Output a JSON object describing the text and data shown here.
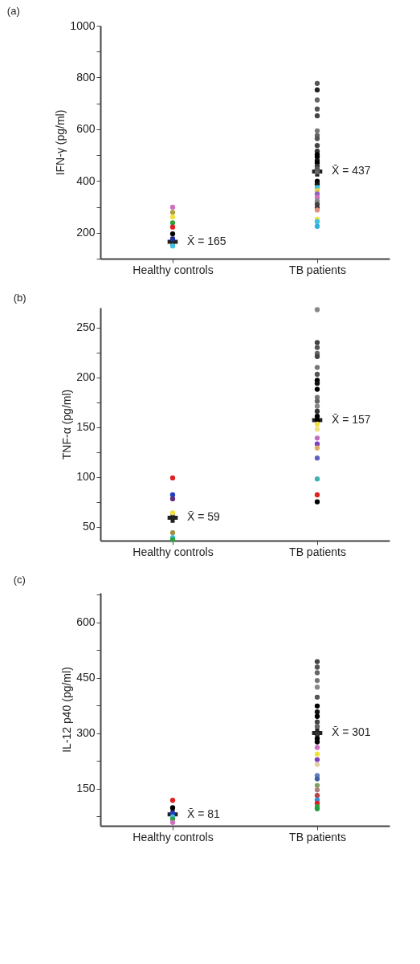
{
  "chart_data": [
    {
      "type": "scatter",
      "title": "(a)",
      "ylabel": "IFN-γ (pg/ml)",
      "categories": [
        "Healthy controls",
        "TB patients"
      ],
      "ylim": [
        100,
        1000
      ],
      "yticks": [
        {
          "value": 100,
          "label": null
        },
        200,
        {
          "value": 300,
          "label": null
        },
        400,
        {
          "value": 500,
          "label": null
        },
        600,
        {
          "value": 700,
          "label": null
        },
        800,
        {
          "value": 900,
          "label": null
        },
        1000
      ],
      "marker": "circle",
      "series": [
        {
          "x": [
            "Healthy controls",
            "Healthy controls",
            "Healthy controls",
            "Healthy controls",
            "Healthy controls",
            "Healthy controls",
            "Healthy controls",
            "Healthy controls"
          ],
          "values": [
            299,
            279,
            261,
            238,
            222,
            196,
            176,
            149
          ],
          "colors": [
            "#d070c0",
            "#b0a040",
            "#f0e040",
            "#30a040",
            "#e02020",
            "#000000",
            "#2030a0",
            "#40c0e0"
          ]
        },
        {
          "x": [
            "TB patients",
            "TB patients",
            "TB patients",
            "TB patients",
            "TB patients",
            "TB patients",
            "TB patients",
            "TB patients",
            "TB patients",
            "TB patients",
            "TB patients",
            "TB patients",
            "TB patients",
            "TB patients",
            "TB patients",
            "TB patients",
            "TB patients",
            "TB patients",
            "TB patients",
            "TB patients",
            "TB patients",
            "TB patients",
            "TB patients",
            "TB patients",
            "TB patients",
            "TB patients",
            "TB patients",
            "TB patients",
            "TB patients",
            "TB patients"
          ],
          "values": [
            777,
            752,
            713,
            678,
            652,
            594,
            576,
            564,
            537,
            515,
            502,
            493,
            479,
            470,
            457,
            448,
            435,
            399,
            388,
            375,
            363,
            350,
            337,
            323,
            310,
            296,
            288,
            252,
            243,
            225
          ],
          "colors": [
            "#555555",
            "#222222",
            "#666666",
            "#555555",
            "#444444",
            "#777777",
            "#666666",
            "#555555",
            "#444444",
            "#333333",
            "#000000",
            "#000000",
            "#111111",
            "#000000",
            "#333333",
            "#555555",
            "#666666",
            "#000000",
            "#111111",
            "#40c0e0",
            "#e0d040",
            "#9060c0",
            "#d070c0",
            "#888888",
            "#444444",
            "#333333",
            "#e09080",
            "#f0e040",
            "#40c0e0",
            "#30b0e0"
          ]
        },
        {
          "type": "scatter",
          "marker": "cross",
          "color": "#222222",
          "x": [
            "Healthy controls",
            "TB patients"
          ],
          "values": [
            165,
            437
          ],
          "value_labels": [
            "X̄ = 165",
            "X̄ = 437"
          ]
        }
      ]
    },
    {
      "type": "scatter",
      "title": "(b)",
      "ylabel": "TNF-α (pg/ml)",
      "categories": [
        "Healthy controls",
        "TB patients"
      ],
      "ylim": [
        36,
        270
      ],
      "yticks": [
        50,
        {
          "value": 75,
          "label": null
        },
        100,
        {
          "value": 125,
          "label": null
        },
        150,
        {
          "value": 175,
          "label": null
        },
        200,
        {
          "value": 225,
          "label": null
        },
        250
      ],
      "marker": "circle",
      "series": [
        {
          "x": [
            "Healthy controls",
            "Healthy controls",
            "Healthy controls",
            "Healthy controls",
            "Healthy controls",
            "Healthy controls",
            "Healthy controls"
          ],
          "values": [
            99,
            82,
            78,
            64,
            44,
            39,
            37
          ],
          "colors": [
            "#e02020",
            "#2040c0",
            "#603080",
            "#f0e040",
            "#a09040",
            "#40c0e0",
            "#30a040"
          ]
        },
        {
          "x": [
            "TB patients",
            "TB patients",
            "TB patients",
            "TB patients",
            "TB patients",
            "TB patients",
            "TB patients",
            "TB patients",
            "TB patients",
            "TB patients",
            "TB patients",
            "TB patients",
            "TB patients",
            "TB patients",
            "TB patients",
            "TB patients",
            "TB patients",
            "TB patients",
            "TB patients",
            "TB patients",
            "TB patients",
            "TB patients",
            "TB patients",
            "TB patients",
            "TB patients"
          ],
          "values": [
            268,
            235,
            230,
            224,
            221,
            210,
            203,
            197,
            194,
            188,
            180,
            176,
            171,
            166,
            161,
            157,
            153,
            148,
            139,
            133,
            129,
            119,
            98,
            82,
            75
          ],
          "colors": [
            "#888888",
            "#444444",
            "#555555",
            "#666666",
            "#444444",
            "#777777",
            "#555555",
            "#000000",
            "#111111",
            "#000000",
            "#777777",
            "#666666",
            "#888888",
            "#333333",
            "#000000",
            "#000000",
            "#f0e040",
            "#f0e080",
            "#c070c0",
            "#8040c0",
            "#e0b060",
            "#6060c0",
            "#40b0b0",
            "#e02020",
            "#000000"
          ]
        },
        {
          "type": "scatter",
          "marker": "cross",
          "color": "#222222",
          "x": [
            "Healthy controls",
            "TB patients"
          ],
          "values": [
            59,
            157
          ],
          "value_labels": [
            "X̄ = 59",
            "X̄ = 157"
          ]
        }
      ]
    },
    {
      "type": "scatter",
      "title": "(c)",
      "ylabel": "IL-12 p40 (pg/ml)",
      "categories": [
        "Healthy controls",
        "TB patients"
      ],
      "ylim": [
        50,
        680
      ],
      "yticks": [
        {
          "value": 75,
          "label": null
        },
        150,
        {
          "value": 225,
          "label": null
        },
        300,
        {
          "value": 375,
          "label": null
        },
        450,
        {
          "value": 525,
          "label": null
        },
        600,
        {
          "value": 675,
          "label": null
        }
      ],
      "marker": "circle",
      "series": [
        {
          "x": [
            "Healthy controls",
            "Healthy controls",
            "Healthy controls",
            "Healthy controls",
            "Healthy controls",
            "Healthy controls"
          ],
          "values": [
            119,
            99,
            84,
            74,
            68,
            59
          ],
          "colors": [
            "#e02020",
            "#000000",
            "#2040c0",
            "#40c0e0",
            "#30a040",
            "#d070c0"
          ]
        },
        {
          "x": [
            "TB patients",
            "TB patients",
            "TB patients",
            "TB patients",
            "TB patients",
            "TB patients",
            "TB patients",
            "TB patients",
            "TB patients",
            "TB patients",
            "TB patients",
            "TB patients",
            "TB patients",
            "TB patients",
            "TB patients",
            "TB patients",
            "TB patients",
            "TB patients",
            "TB patients",
            "TB patients",
            "TB patients",
            "TB patients",
            "TB patients",
            "TB patients",
            "TB patients",
            "TB patients",
            "TB patients"
          ],
          "values": [
            494,
            479,
            464,
            443,
            425,
            398,
            374,
            358,
            346,
            331,
            319,
            298,
            286,
            277,
            262,
            244,
            229,
            216,
            186,
            177,
            159,
            147,
            132,
            120,
            111,
            102,
            96
          ],
          "colors": [
            "#444444",
            "#555555",
            "#666666",
            "#777777",
            "#888888",
            "#555555",
            "#000000",
            "#111111",
            "#000000",
            "#444444",
            "#666666",
            "#333333",
            "#000000",
            "#000000",
            "#d070c0",
            "#f0e040",
            "#8040c0",
            "#e0d0a0",
            "#6080c0",
            "#4060a0",
            "#80a060",
            "#b08080",
            "#c04040",
            "#3090e0",
            "#e02020",
            "#30a040",
            "#20a040"
          ]
        },
        {
          "type": "scatter",
          "marker": "cross",
          "color": "#222222",
          "x": [
            "Healthy controls",
            "TB patients"
          ],
          "values": [
            81,
            301
          ],
          "value_labels": [
            "X̄ = 81",
            "X̄ = 301"
          ]
        }
      ]
    }
  ]
}
